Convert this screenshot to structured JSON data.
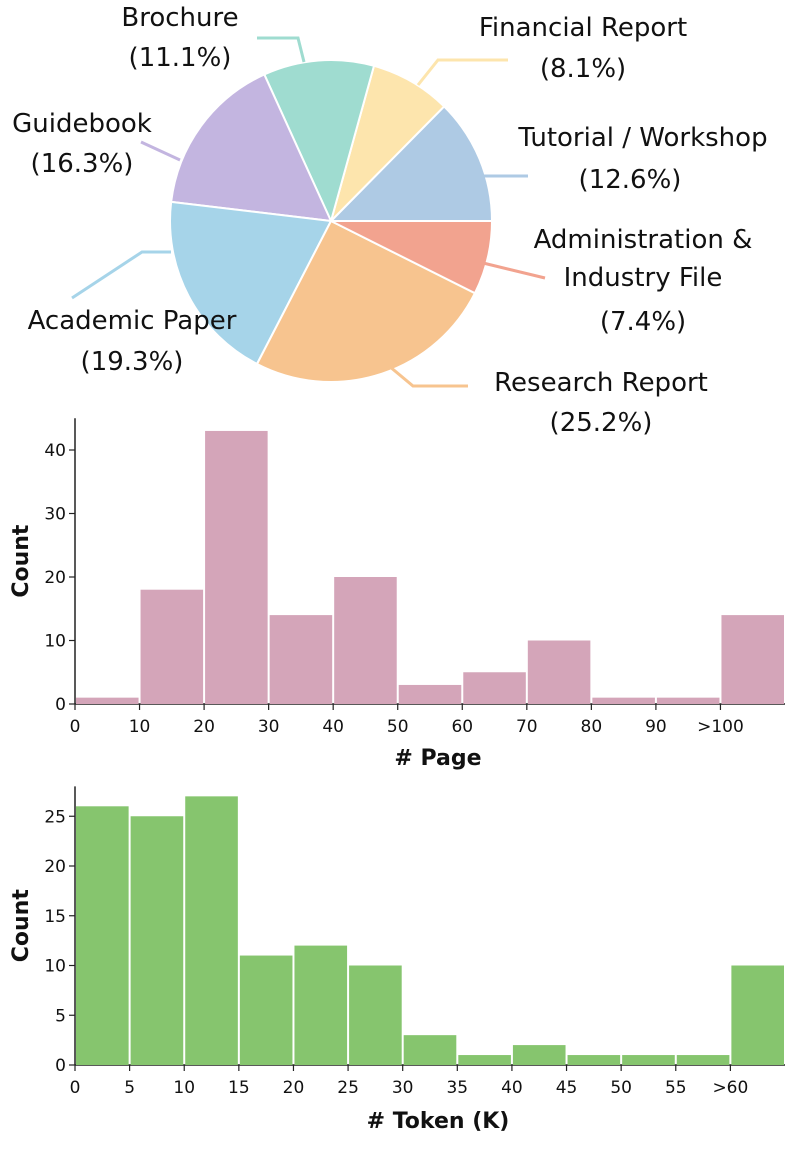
{
  "chart_data": [
    {
      "type": "pie",
      "slices": [
        {
          "label": "Tutorial / Workshop",
          "pct_label": "(12.6%)",
          "value": 12.6,
          "color": "#aecae4"
        },
        {
          "label": "Financial Report",
          "pct_label": "(8.1%)",
          "value": 8.1,
          "color": "#fde5ad"
        },
        {
          "label": "Brochure",
          "pct_label": "(11.1%)",
          "value": 11.1,
          "color": "#9fdcd0"
        },
        {
          "label": "Guidebook",
          "pct_label": "(16.3%)",
          "value": 16.3,
          "color": "#c3b5e0"
        },
        {
          "label": "Academic Paper",
          "pct_label": "(19.3%)",
          "value": 19.3,
          "color": "#a6d4e9"
        },
        {
          "label": "Research Report",
          "pct_label": "(25.2%)",
          "value": 25.2,
          "color": "#f7c48f"
        },
        {
          "label": "Administration & Industry File",
          "pct_label": "(7.4%)",
          "value": 7.4,
          "color": "#f2a38f"
        }
      ]
    },
    {
      "type": "bar",
      "xlabel": "# Page",
      "ylabel": "Count",
      "color": "#d4a5b9",
      "xticks": [
        "0",
        "10",
        "20",
        "30",
        "40",
        "50",
        "60",
        "70",
        "80",
        "90",
        ">100"
      ],
      "yticks": [
        0,
        10,
        20,
        30,
        40
      ],
      "ylim": [
        0,
        45
      ],
      "values": [
        1,
        18,
        43,
        14,
        20,
        3,
        5,
        10,
        1,
        1,
        14
      ]
    },
    {
      "type": "bar",
      "xlabel": "# Token (K)",
      "ylabel": "Count",
      "color": "#86c56e",
      "xticks": [
        "0",
        "5",
        "10",
        "15",
        "20",
        "25",
        "30",
        "35",
        "40",
        "45",
        "50",
        "55",
        ">60"
      ],
      "yticks": [
        0,
        5,
        10,
        15,
        20,
        25
      ],
      "ylim": [
        0,
        28
      ],
      "values": [
        26,
        25,
        27,
        11,
        12,
        10,
        3,
        1,
        2,
        1,
        1,
        1,
        10
      ]
    }
  ]
}
